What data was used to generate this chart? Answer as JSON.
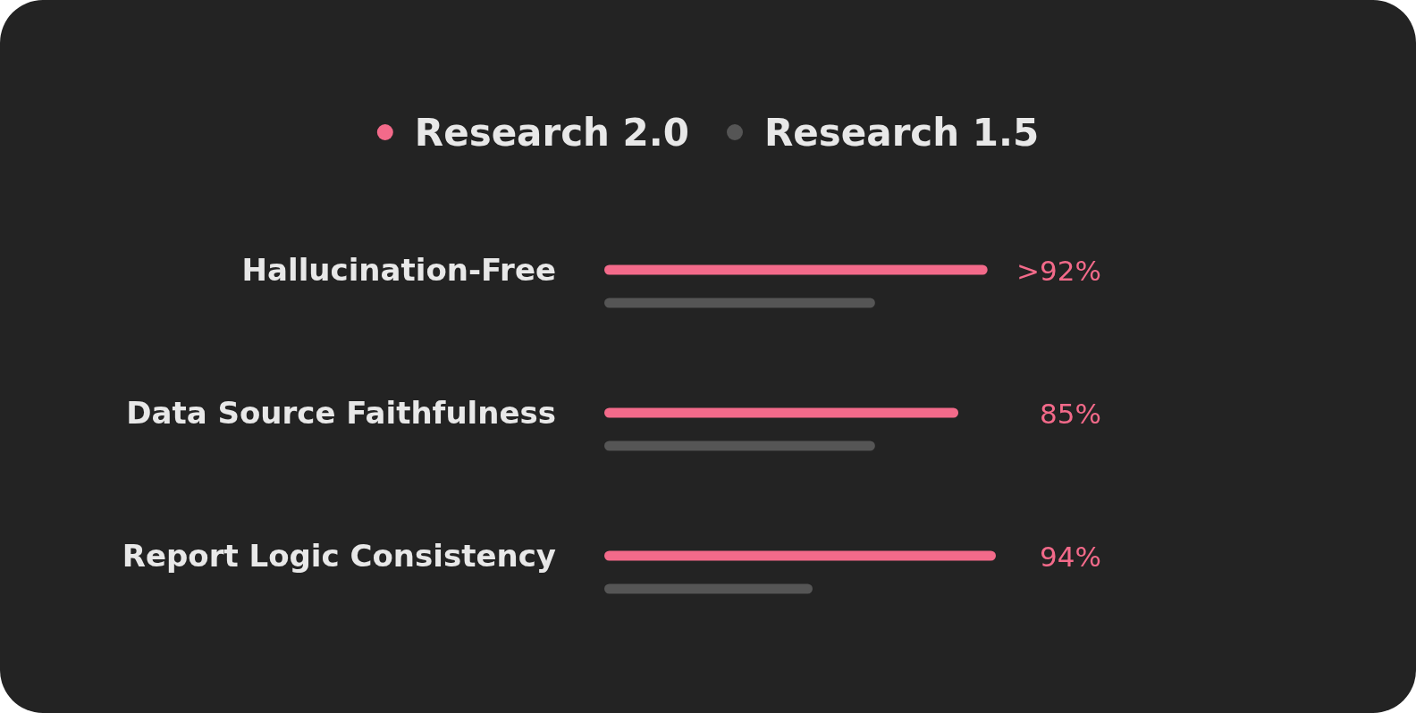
{
  "chart_data": {
    "type": "bar",
    "orientation": "horizontal",
    "categories": [
      "Hallucination-Free",
      "Data Source Faithfulness",
      "Report Logic Consistency"
    ],
    "tick_labels": "y",
    "legend": "top",
    "series": [
      {
        "name": "Research 2.0",
        "color": "#f36a8a",
        "values": [
          92,
          85,
          94
        ],
        "value_labels": [
          ">92%",
          "85%",
          "94%"
        ]
      },
      {
        "name": "Research 1.5",
        "color": "#555555",
        "values": [
          65,
          65,
          50
        ]
      }
    ]
  }
}
